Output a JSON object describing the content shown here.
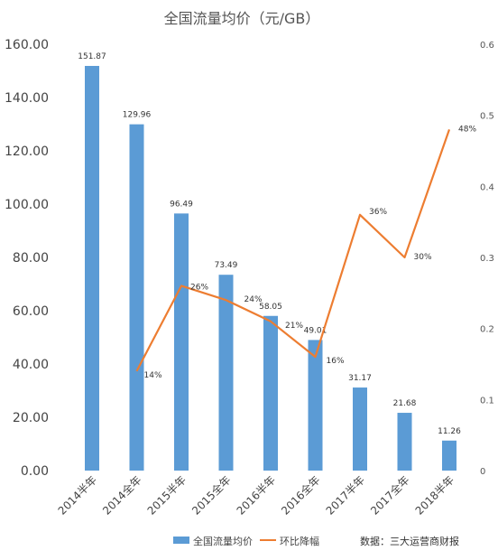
{
  "chart_data": {
    "type": "bar",
    "title": "全国流量均价（元/GB）",
    "categories": [
      "2014半年",
      "2014全年",
      "2015半年",
      "2015全年",
      "2016半年",
      "2016全年",
      "2017半年",
      "2017全年",
      "2018半年"
    ],
    "series": [
      {
        "name": "全国流量均价",
        "type": "bar",
        "axis": "left",
        "color": "#5B9BD5",
        "values": [
          151.87,
          129.96,
          96.49,
          73.49,
          58.05,
          49.01,
          31.17,
          21.68,
          11.26
        ],
        "labels": [
          "151.87",
          "129.96",
          "96.49",
          "73.49",
          "58.05",
          "49.01",
          "31.17",
          "21.68",
          "11.26"
        ]
      },
      {
        "name": "环比降幅",
        "type": "line",
        "axis": "right",
        "color": "#ED7D31",
        "values": [
          null,
          0.14,
          0.26,
          0.24,
          0.21,
          0.16,
          0.36,
          0.3,
          0.48
        ],
        "labels": [
          "",
          "14%",
          "26%",
          "24%",
          "21%",
          "16%",
          "36%",
          "30%",
          "48%"
        ]
      }
    ],
    "y_left": {
      "min": 0,
      "max": 160,
      "step": 20,
      "tick_labels": [
        "0.00",
        "20.00",
        "40.00",
        "60.00",
        "80.00",
        "100.00",
        "120.00",
        "140.00",
        "160.00"
      ]
    },
    "y_right": {
      "min": 0,
      "max": 0.6,
      "step": 0.1,
      "tick_labels": [
        "0",
        "0.1",
        "0.2",
        "0.3",
        "0.4",
        "0.5",
        "0.6"
      ]
    },
    "grid": false,
    "legend_position": "bottom"
  },
  "source": "数据：三大运营商财报"
}
